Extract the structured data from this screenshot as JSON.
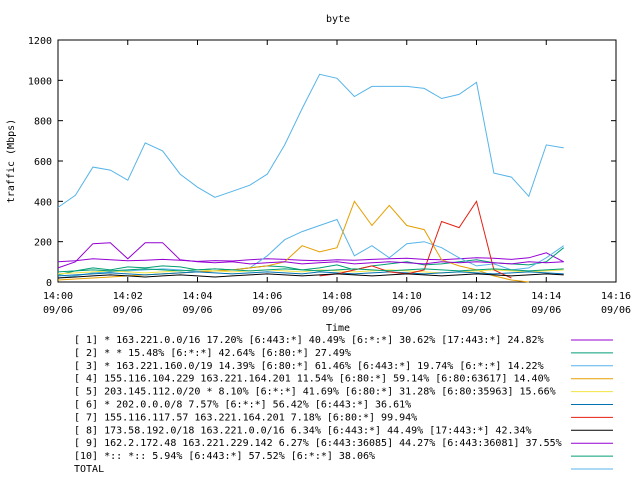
{
  "chart_data": {
    "type": "line",
    "title": "byte",
    "xlabel": "Time",
    "ylabel": "traffic (Mbps)",
    "xlim": [
      0,
      16
    ],
    "ylim": [
      0,
      1200
    ],
    "y_ticks": [
      0,
      200,
      400,
      600,
      800,
      1000,
      1200
    ],
    "x_ticks": [
      {
        "t": 0,
        "time": "14:00",
        "date": "09/06"
      },
      {
        "t": 2,
        "time": "14:02",
        "date": "09/06"
      },
      {
        "t": 4,
        "time": "14:04",
        "date": "09/06"
      },
      {
        "t": 6,
        "time": "14:06",
        "date": "09/06"
      },
      {
        "t": 8,
        "time": "14:08",
        "date": "09/06"
      },
      {
        "t": 10,
        "time": "14:10",
        "date": "09/06"
      },
      {
        "t": 12,
        "time": "14:12",
        "date": "09/06"
      },
      {
        "t": 14,
        "time": "14:14",
        "date": "09/06"
      },
      {
        "t": 16,
        "time": "14:16",
        "date": "09/06"
      }
    ],
    "grid": false,
    "legend_position": "bottom",
    "x": [
      0,
      0.5,
      1,
      1.5,
      2,
      2.5,
      3,
      3.5,
      4,
      4.5,
      5,
      5.5,
      6,
      6.5,
      7,
      7.5,
      8,
      8.5,
      9,
      9.5,
      10,
      10.5,
      11,
      11.5,
      12,
      12.5,
      13,
      13.5,
      14,
      14.5
    ],
    "series": [
      {
        "name": "[ 1] * 163.221.0.0/16 17.20%  [6:443:*] 40.49% [6:*:*] 30.62% [17:443:*] 24.82%",
        "color": "#9400d3",
        "values": [
          100,
          105,
          115,
          110,
          105,
          108,
          112,
          108,
          102,
          106,
          104,
          110,
          115,
          112,
          108,
          105,
          110,
          108,
          112,
          115,
          118,
          112,
          110,
          115,
          120,
          118,
          112,
          120,
          145,
          100
        ]
      },
      {
        "name": "[ 2] * * 15.48%  [6:*:*] 42.64% [6:80:*] 27.49%",
        "color": "#009e73",
        "values": [
          35,
          55,
          70,
          60,
          75,
          70,
          80,
          75,
          60,
          65,
          60,
          70,
          80,
          75,
          60,
          70,
          85,
          60,
          80,
          90,
          100,
          85,
          90,
          100,
          110,
          95,
          90,
          85,
          100,
          170
        ]
      },
      {
        "name": "[ 3] * 163.221.160.0/19 14.39%  [6:80:*] 61.46% [6:443:*] 19.74% [6:*:*] 14.22%",
        "color": "#56b4e9",
        "values": [
          20,
          30,
          45,
          50,
          55,
          60,
          65,
          60,
          50,
          55,
          60,
          70,
          130,
          210,
          250,
          280,
          310,
          130,
          180,
          120,
          190,
          200,
          170,
          120,
          80,
          90,
          60,
          70,
          120,
          180
        ]
      },
      {
        "name": "[ 4] 155.116.104.229 163.221.164.201 11.54%  [6:80:*] 59.14% [6:80:63617] 14.40%",
        "color": "#e69f00",
        "values": [
          10,
          15,
          20,
          25,
          30,
          35,
          40,
          45,
          50,
          55,
          60,
          70,
          80,
          100,
          180,
          150,
          170,
          400,
          280,
          380,
          280,
          260,
          110,
          80,
          60,
          30,
          10,
          0,
          null,
          null
        ]
      },
      {
        "name": "[ 5] 203.145.112.0/20 * 8.10%  [6:*:*] 41.69% [6:80:*] 31.28% [6:80:35963] 15.66%",
        "color": "#f0e442",
        "values": [
          40,
          45,
          50,
          55,
          50,
          45,
          50,
          55,
          60,
          55,
          50,
          55,
          60,
          55,
          50,
          60,
          55,
          50,
          55,
          60,
          55,
          50,
          45,
          50,
          55,
          60,
          55,
          50,
          55,
          60
        ]
      },
      {
        "name": "[ 6] * 202.0.0.0/8 7.57%  [6:*:*] 56.42% [6:443:*] 36.61%",
        "color": "#0072b2",
        "values": [
          30,
          35,
          40,
          45,
          40,
          35,
          40,
          45,
          50,
          45,
          40,
          45,
          50,
          45,
          40,
          50,
          45,
          40,
          45,
          50,
          45,
          40,
          45,
          50,
          45,
          40,
          45,
          50,
          45,
          40
        ]
      },
      {
        "name": "[ 7] 155.116.117.57 163.221.164.201 7.18%  [6:80:*] 99.94%",
        "color": "#e51e10",
        "values": [
          null,
          null,
          null,
          null,
          null,
          null,
          null,
          null,
          null,
          null,
          null,
          null,
          null,
          null,
          null,
          30,
          40,
          60,
          80,
          50,
          40,
          60,
          300,
          270,
          400,
          60,
          20,
          null,
          null,
          null
        ]
      },
      {
        "name": "[ 8] 173.58.192.0/18 163.221.0.0/16 6.34%  [6:443:*] 44.49% [17:443:*] 42.34%",
        "color": "#000000",
        "values": [
          20,
          25,
          30,
          35,
          30,
          25,
          30,
          35,
          30,
          25,
          30,
          35,
          40,
          35,
          30,
          35,
          40,
          35,
          30,
          35,
          40,
          35,
          30,
          35,
          40,
          35,
          30,
          35,
          40,
          35
        ]
      },
      {
        "name": "[ 9] 162.2.172.48 163.221.229.142 6.27%  [6:443:36085] 44.27% [6:443:36081] 37.55%",
        "color": "#9400d3",
        "values": [
          70,
          100,
          190,
          195,
          115,
          195,
          195,
          110,
          100,
          95,
          100,
          90,
          95,
          100,
          90,
          95,
          100,
          90,
          95,
          100,
          95,
          90,
          100,
          95,
          100,
          95,
          90,
          100,
          95,
          100
        ]
      },
      {
        "name": "[10] *:: *:: 5.94%  [6:443:*] 57.52% [6:*:*] 38.06%",
        "color": "#009e73",
        "values": [
          50,
          55,
          60,
          55,
          60,
          65,
          60,
          55,
          60,
          65,
          60,
          55,
          60,
          65,
          60,
          55,
          60,
          65,
          60,
          55,
          60,
          65,
          60,
          55,
          60,
          65,
          60,
          55,
          60,
          65
        ]
      },
      {
        "name": "TOTAL",
        "color": "#56b4e9",
        "values": [
          370,
          430,
          570,
          555,
          505,
          690,
          650,
          535,
          470,
          420,
          450,
          480,
          535,
          680,
          860,
          1030,
          1010,
          920,
          970,
          970,
          970,
          960,
          910,
          930,
          990,
          540,
          520,
          425,
          680,
          665
        ]
      }
    ]
  }
}
